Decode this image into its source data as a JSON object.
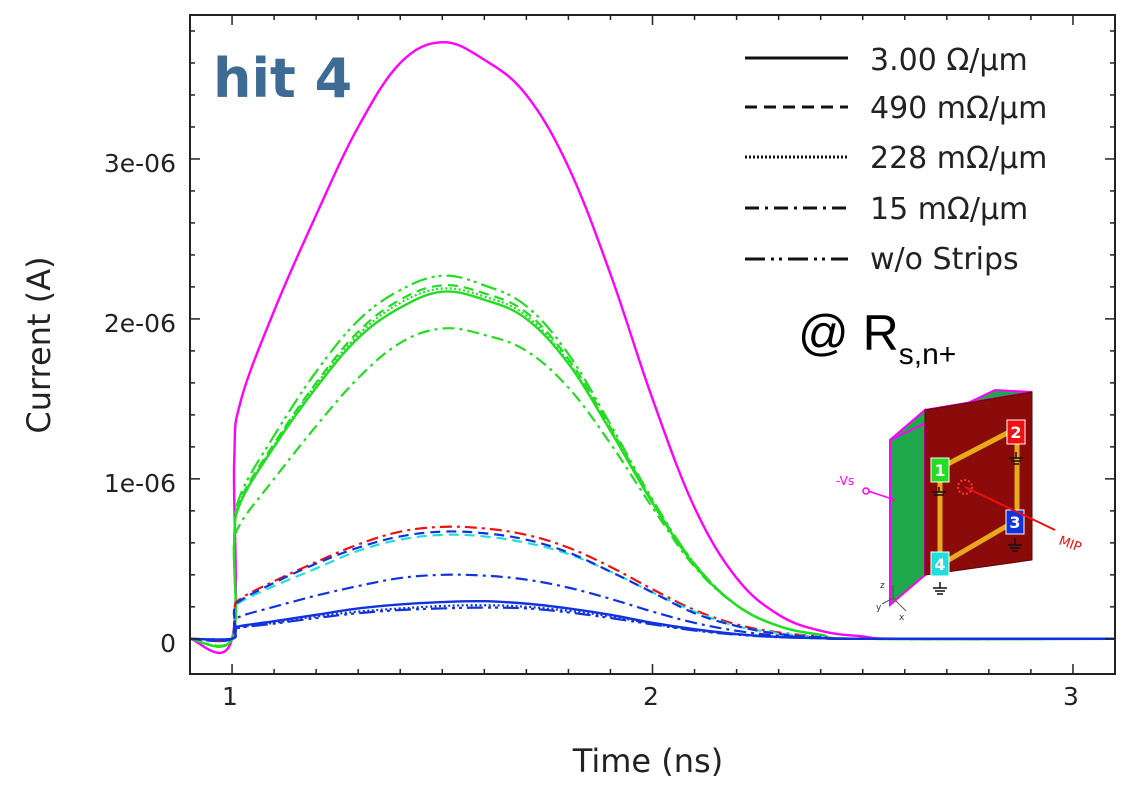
{
  "chart_data": {
    "type": "line",
    "title": "hit 4",
    "xlabel": "Time (ns)",
    "ylabel": "Current (A)",
    "xlim": [
      0.9,
      3.1
    ],
    "ylim": [
      -2.2e-07,
      3.9e-06
    ],
    "x_ticks": [
      1,
      2,
      3
    ],
    "x_tick_labels": [
      "1",
      "2",
      "3"
    ],
    "y_ticks": [
      0,
      1e-06,
      2e-06,
      3e-06
    ],
    "y_tick_labels": [
      "0",
      "1e-06",
      "2e-06",
      "3e-06"
    ],
    "annotation": {
      "prefix": "@ R",
      "subscript": "s,n+"
    },
    "legend": [
      {
        "label": "3.00 Ω/μm",
        "style": "solid"
      },
      {
        "label": "490  mΩ/μm",
        "style": "dashed"
      },
      {
        "label": "228  mΩ/μm",
        "style": "dotted"
      },
      {
        "label": "15    mΩ/μm",
        "style": "dashdot"
      },
      {
        "label": "w/o Strips",
        "style": "dashdotdot"
      }
    ],
    "inset": {
      "electrode_labels": [
        "1",
        "2",
        "3",
        "4"
      ],
      "bias_label": "-Vs",
      "particle_label": "MIP",
      "axis_labels": [
        "z",
        "y",
        "x"
      ]
    },
    "series": [
      {
        "name": "pad4-3.00",
        "color": "#ff00ff",
        "style": "solid",
        "points": [
          [
            0.9,
            0
          ],
          [
            1.0,
            0
          ],
          [
            1.005,
            1.1e-06
          ],
          [
            1.02,
            1.48e-06
          ],
          [
            1.1,
            2.05e-06
          ],
          [
            1.2,
            2.65e-06
          ],
          [
            1.3,
            3.2e-06
          ],
          [
            1.4,
            3.6e-06
          ],
          [
            1.5,
            3.73e-06
          ],
          [
            1.6,
            3.62e-06
          ],
          [
            1.7,
            3.4e-06
          ],
          [
            1.8,
            2.95e-06
          ],
          [
            1.9,
            2.28e-06
          ],
          [
            2.0,
            1.5e-06
          ],
          [
            2.1,
            8.2e-07
          ],
          [
            2.2,
            3.8e-07
          ],
          [
            2.3,
            1.5e-07
          ],
          [
            2.4,
            5e-08
          ],
          [
            2.5,
            1.5e-08
          ],
          [
            2.6,
            0
          ],
          [
            3.1,
            0
          ]
        ]
      },
      {
        "name": "pad1-3.00",
        "color": "#22dd22",
        "style": "solid",
        "points": [
          [
            0.9,
            0
          ],
          [
            1.0,
            0
          ],
          [
            1.005,
            6e-07
          ],
          [
            1.02,
            8.5e-07
          ],
          [
            1.1,
            1.2e-06
          ],
          [
            1.2,
            1.57e-06
          ],
          [
            1.3,
            1.88e-06
          ],
          [
            1.4,
            2.07e-06
          ],
          [
            1.5,
            2.17e-06
          ],
          [
            1.6,
            2.12e-06
          ],
          [
            1.7,
            2e-06
          ],
          [
            1.8,
            1.72e-06
          ],
          [
            1.9,
            1.3e-06
          ],
          [
            2.0,
            8.5e-07
          ],
          [
            2.1,
            4.6e-07
          ],
          [
            2.2,
            2.1e-07
          ],
          [
            2.3,
            8e-08
          ],
          [
            2.4,
            2.5e-08
          ],
          [
            2.5,
            0
          ],
          [
            3.1,
            0
          ]
        ]
      },
      {
        "name": "pad1-490",
        "color": "#22dd22",
        "style": "dashed",
        "points": [
          [
            0.9,
            0
          ],
          [
            1.0,
            0
          ],
          [
            1.005,
            6.2e-07
          ],
          [
            1.02,
            8.7e-07
          ],
          [
            1.1,
            1.22e-06
          ],
          [
            1.2,
            1.6e-06
          ],
          [
            1.3,
            1.92e-06
          ],
          [
            1.4,
            2.12e-06
          ],
          [
            1.5,
            2.21e-06
          ],
          [
            1.6,
            2.16e-06
          ],
          [
            1.7,
            2.04e-06
          ],
          [
            1.8,
            1.75e-06
          ],
          [
            1.9,
            1.32e-06
          ],
          [
            2.0,
            8.6e-07
          ],
          [
            2.1,
            4.7e-07
          ],
          [
            2.2,
            2.1e-07
          ],
          [
            2.3,
            8e-08
          ],
          [
            2.4,
            2.5e-08
          ],
          [
            2.5,
            0
          ],
          [
            3.1,
            0
          ]
        ]
      },
      {
        "name": "pad1-228",
        "color": "#22dd22",
        "style": "dotted",
        "points": [
          [
            0.9,
            0
          ],
          [
            1.0,
            0
          ],
          [
            1.005,
            6.2e-07
          ],
          [
            1.02,
            8.6e-07
          ],
          [
            1.1,
            1.21e-06
          ],
          [
            1.2,
            1.59e-06
          ],
          [
            1.3,
            1.9e-06
          ],
          [
            1.4,
            2.1e-06
          ],
          [
            1.5,
            2.19e-06
          ],
          [
            1.6,
            2.14e-06
          ],
          [
            1.7,
            2.02e-06
          ],
          [
            1.8,
            1.73e-06
          ],
          [
            1.9,
            1.31e-06
          ],
          [
            2.0,
            8.5e-07
          ],
          [
            2.1,
            4.6e-07
          ],
          [
            2.2,
            2.1e-07
          ],
          [
            2.3,
            8e-08
          ],
          [
            2.4,
            2.5e-08
          ],
          [
            2.5,
            0
          ],
          [
            3.1,
            0
          ]
        ]
      },
      {
        "name": "pad1-15",
        "color": "#22dd22",
        "style": "dashdot",
        "points": [
          [
            0.9,
            0
          ],
          [
            1.0,
            0
          ],
          [
            1.005,
            5.5e-07
          ],
          [
            1.02,
            7.2e-07
          ],
          [
            1.1,
            1e-06
          ],
          [
            1.2,
            1.33e-06
          ],
          [
            1.3,
            1.63e-06
          ],
          [
            1.4,
            1.85e-06
          ],
          [
            1.5,
            1.94e-06
          ],
          [
            1.6,
            1.9e-06
          ],
          [
            1.7,
            1.8e-06
          ],
          [
            1.8,
            1.57e-06
          ],
          [
            1.9,
            1.22e-06
          ],
          [
            2.0,
            8.2e-07
          ],
          [
            2.1,
            4.5e-07
          ],
          [
            2.2,
            2.1e-07
          ],
          [
            2.3,
            8e-08
          ],
          [
            2.4,
            2.5e-08
          ],
          [
            2.5,
            0
          ],
          [
            3.1,
            0
          ]
        ]
      },
      {
        "name": "pad1-wo",
        "color": "#22dd22",
        "style": "dashdotdot",
        "points": [
          [
            0.9,
            0
          ],
          [
            1.0,
            0
          ],
          [
            1.005,
            6.3e-07
          ],
          [
            1.02,
            9e-07
          ],
          [
            1.1,
            1.27e-06
          ],
          [
            1.2,
            1.67e-06
          ],
          [
            1.3,
            1.99e-06
          ],
          [
            1.4,
            2.18e-06
          ],
          [
            1.5,
            2.27e-06
          ],
          [
            1.6,
            2.21e-06
          ],
          [
            1.7,
            2.08e-06
          ],
          [
            1.8,
            1.78e-06
          ],
          [
            1.9,
            1.34e-06
          ],
          [
            2.0,
            8.7e-07
          ],
          [
            2.1,
            4.7e-07
          ],
          [
            2.2,
            2.1e-07
          ],
          [
            2.3,
            8e-08
          ],
          [
            2.4,
            2.5e-08
          ],
          [
            2.5,
            0
          ],
          [
            3.1,
            0
          ]
        ]
      },
      {
        "name": "pad2-red",
        "color": "#ee1111",
        "style": "dashdot",
        "points": [
          [
            0.9,
            0
          ],
          [
            1.0,
            0
          ],
          [
            1.005,
            1.8e-07
          ],
          [
            1.02,
            2.5e-07
          ],
          [
            1.1,
            3.6e-07
          ],
          [
            1.2,
            4.8e-07
          ],
          [
            1.3,
            5.9e-07
          ],
          [
            1.4,
            6.7e-07
          ],
          [
            1.5,
            7e-07
          ],
          [
            1.6,
            6.9e-07
          ],
          [
            1.7,
            6.5e-07
          ],
          [
            1.8,
            5.7e-07
          ],
          [
            1.9,
            4.5e-07
          ],
          [
            2.0,
            3.1e-07
          ],
          [
            2.1,
            1.8e-07
          ],
          [
            2.2,
            9e-08
          ],
          [
            2.3,
            4e-08
          ],
          [
            2.4,
            1.5e-08
          ],
          [
            2.5,
            0
          ],
          [
            3.1,
            0
          ]
        ]
      },
      {
        "name": "pad4-cyan",
        "color": "#22dddd",
        "style": "dashed",
        "points": [
          [
            0.9,
            0
          ],
          [
            1.0,
            0
          ],
          [
            1.005,
            1.7e-07
          ],
          [
            1.02,
            2.3e-07
          ],
          [
            1.1,
            3.3e-07
          ],
          [
            1.2,
            4.4e-07
          ],
          [
            1.3,
            5.5e-07
          ],
          [
            1.4,
            6.2e-07
          ],
          [
            1.5,
            6.5e-07
          ],
          [
            1.6,
            6.4e-07
          ],
          [
            1.7,
            6e-07
          ],
          [
            1.8,
            5.3e-07
          ],
          [
            1.9,
            4.2e-07
          ],
          [
            2.0,
            2.9e-07
          ],
          [
            2.1,
            1.7e-07
          ],
          [
            2.2,
            8e-08
          ],
          [
            2.3,
            3.5e-08
          ],
          [
            2.4,
            1.2e-08
          ],
          [
            2.5,
            0
          ],
          [
            3.1,
            0
          ]
        ]
      },
      {
        "name": "pad3-490",
        "color": "#1133dd",
        "style": "dashed",
        "points": [
          [
            0.9,
            0
          ],
          [
            1.0,
            0
          ],
          [
            1.005,
            1.8e-07
          ],
          [
            1.02,
            2.4e-07
          ],
          [
            1.1,
            3.5e-07
          ],
          [
            1.2,
            4.7e-07
          ],
          [
            1.3,
            5.7e-07
          ],
          [
            1.4,
            6.4e-07
          ],
          [
            1.5,
            6.7e-07
          ],
          [
            1.6,
            6.6e-07
          ],
          [
            1.7,
            6.2e-07
          ],
          [
            1.8,
            5.4e-07
          ],
          [
            1.9,
            4.2e-07
          ],
          [
            2.0,
            2.9e-07
          ],
          [
            2.1,
            1.6e-07
          ],
          [
            2.2,
            8e-08
          ],
          [
            2.3,
            3e-08
          ],
          [
            2.4,
            1e-08
          ],
          [
            2.5,
            0
          ],
          [
            3.1,
            0
          ]
        ]
      },
      {
        "name": "pad3-15",
        "color": "#1133dd",
        "style": "dashdot",
        "points": [
          [
            0.9,
            0
          ],
          [
            1.0,
            0
          ],
          [
            1.005,
            1e-07
          ],
          [
            1.02,
            1.4e-07
          ],
          [
            1.1,
            2e-07
          ],
          [
            1.2,
            2.7e-07
          ],
          [
            1.3,
            3.3e-07
          ],
          [
            1.4,
            3.8e-07
          ],
          [
            1.5,
            4e-07
          ],
          [
            1.6,
            3.95e-07
          ],
          [
            1.7,
            3.7e-07
          ],
          [
            1.8,
            3.2e-07
          ],
          [
            1.9,
            2.5e-07
          ],
          [
            2.0,
            1.7e-07
          ],
          [
            2.1,
            1e-07
          ],
          [
            2.2,
            5e-08
          ],
          [
            2.3,
            2e-08
          ],
          [
            2.4,
            8e-09
          ],
          [
            2.5,
            0
          ],
          [
            3.1,
            0
          ]
        ]
      },
      {
        "name": "pad3-3.00",
        "color": "#1133dd",
        "style": "solid",
        "points": [
          [
            0.9,
            0
          ],
          [
            1.0,
            0
          ],
          [
            1.005,
            6e-08
          ],
          [
            1.02,
            8e-08
          ],
          [
            1.1,
            1.1e-07
          ],
          [
            1.2,
            1.5e-07
          ],
          [
            1.3,
            1.9e-07
          ],
          [
            1.4,
            2.15e-07
          ],
          [
            1.5,
            2.3e-07
          ],
          [
            1.6,
            2.35e-07
          ],
          [
            1.7,
            2.2e-07
          ],
          [
            1.8,
            1.9e-07
          ],
          [
            1.9,
            1.5e-07
          ],
          [
            2.0,
            1e-07
          ],
          [
            2.1,
            6e-08
          ],
          [
            2.2,
            3e-08
          ],
          [
            2.3,
            1.2e-08
          ],
          [
            2.4,
            4e-09
          ],
          [
            2.5,
            0
          ],
          [
            3.1,
            0
          ]
        ]
      },
      {
        "name": "pad3-228",
        "color": "#1133dd",
        "style": "dotted",
        "points": [
          [
            0.9,
            0
          ],
          [
            1.0,
            0
          ],
          [
            1.005,
            5.5e-08
          ],
          [
            1.02,
            7.5e-08
          ],
          [
            1.1,
            1e-07
          ],
          [
            1.2,
            1.4e-07
          ],
          [
            1.3,
            1.7e-07
          ],
          [
            1.4,
            1.9e-07
          ],
          [
            1.5,
            2.05e-07
          ],
          [
            1.6,
            2.1e-07
          ],
          [
            1.7,
            2e-07
          ],
          [
            1.8,
            1.75e-07
          ],
          [
            1.9,
            1.4e-07
          ],
          [
            2.0,
            9.5e-08
          ],
          [
            2.1,
            5.5e-08
          ],
          [
            2.2,
            2.8e-08
          ],
          [
            2.3,
            1.1e-08
          ],
          [
            2.4,
            4e-09
          ],
          [
            2.5,
            0
          ],
          [
            3.1,
            0
          ]
        ]
      },
      {
        "name": "pad3-wo",
        "color": "#1133dd",
        "style": "dashdotdot",
        "points": [
          [
            0.9,
            0
          ],
          [
            1.0,
            0
          ],
          [
            1.005,
            5e-08
          ],
          [
            1.02,
            7e-08
          ],
          [
            1.1,
            9.5e-08
          ],
          [
            1.2,
            1.3e-07
          ],
          [
            1.3,
            1.6e-07
          ],
          [
            1.4,
            1.8e-07
          ],
          [
            1.5,
            1.9e-07
          ],
          [
            1.6,
            1.95e-07
          ],
          [
            1.7,
            1.9e-07
          ],
          [
            1.8,
            1.65e-07
          ],
          [
            1.9,
            1.3e-07
          ],
          [
            2.0,
            9e-08
          ],
          [
            2.1,
            5.2e-08
          ],
          [
            2.2,
            2.6e-08
          ],
          [
            2.3,
            1e-08
          ],
          [
            2.4,
            4e-09
          ],
          [
            2.5,
            0
          ],
          [
            3.1,
            0
          ]
        ]
      }
    ]
  },
  "colors": {
    "magenta": "#ff00ff",
    "green": "#22dd22",
    "red": "#ee1111",
    "cyan": "#22dddd",
    "blue": "#1133dd",
    "title": "#3d6b94",
    "sensor_front": "#8b0a0a",
    "sensor_side": "#1fa84a",
    "strip": "#e8a91c"
  }
}
